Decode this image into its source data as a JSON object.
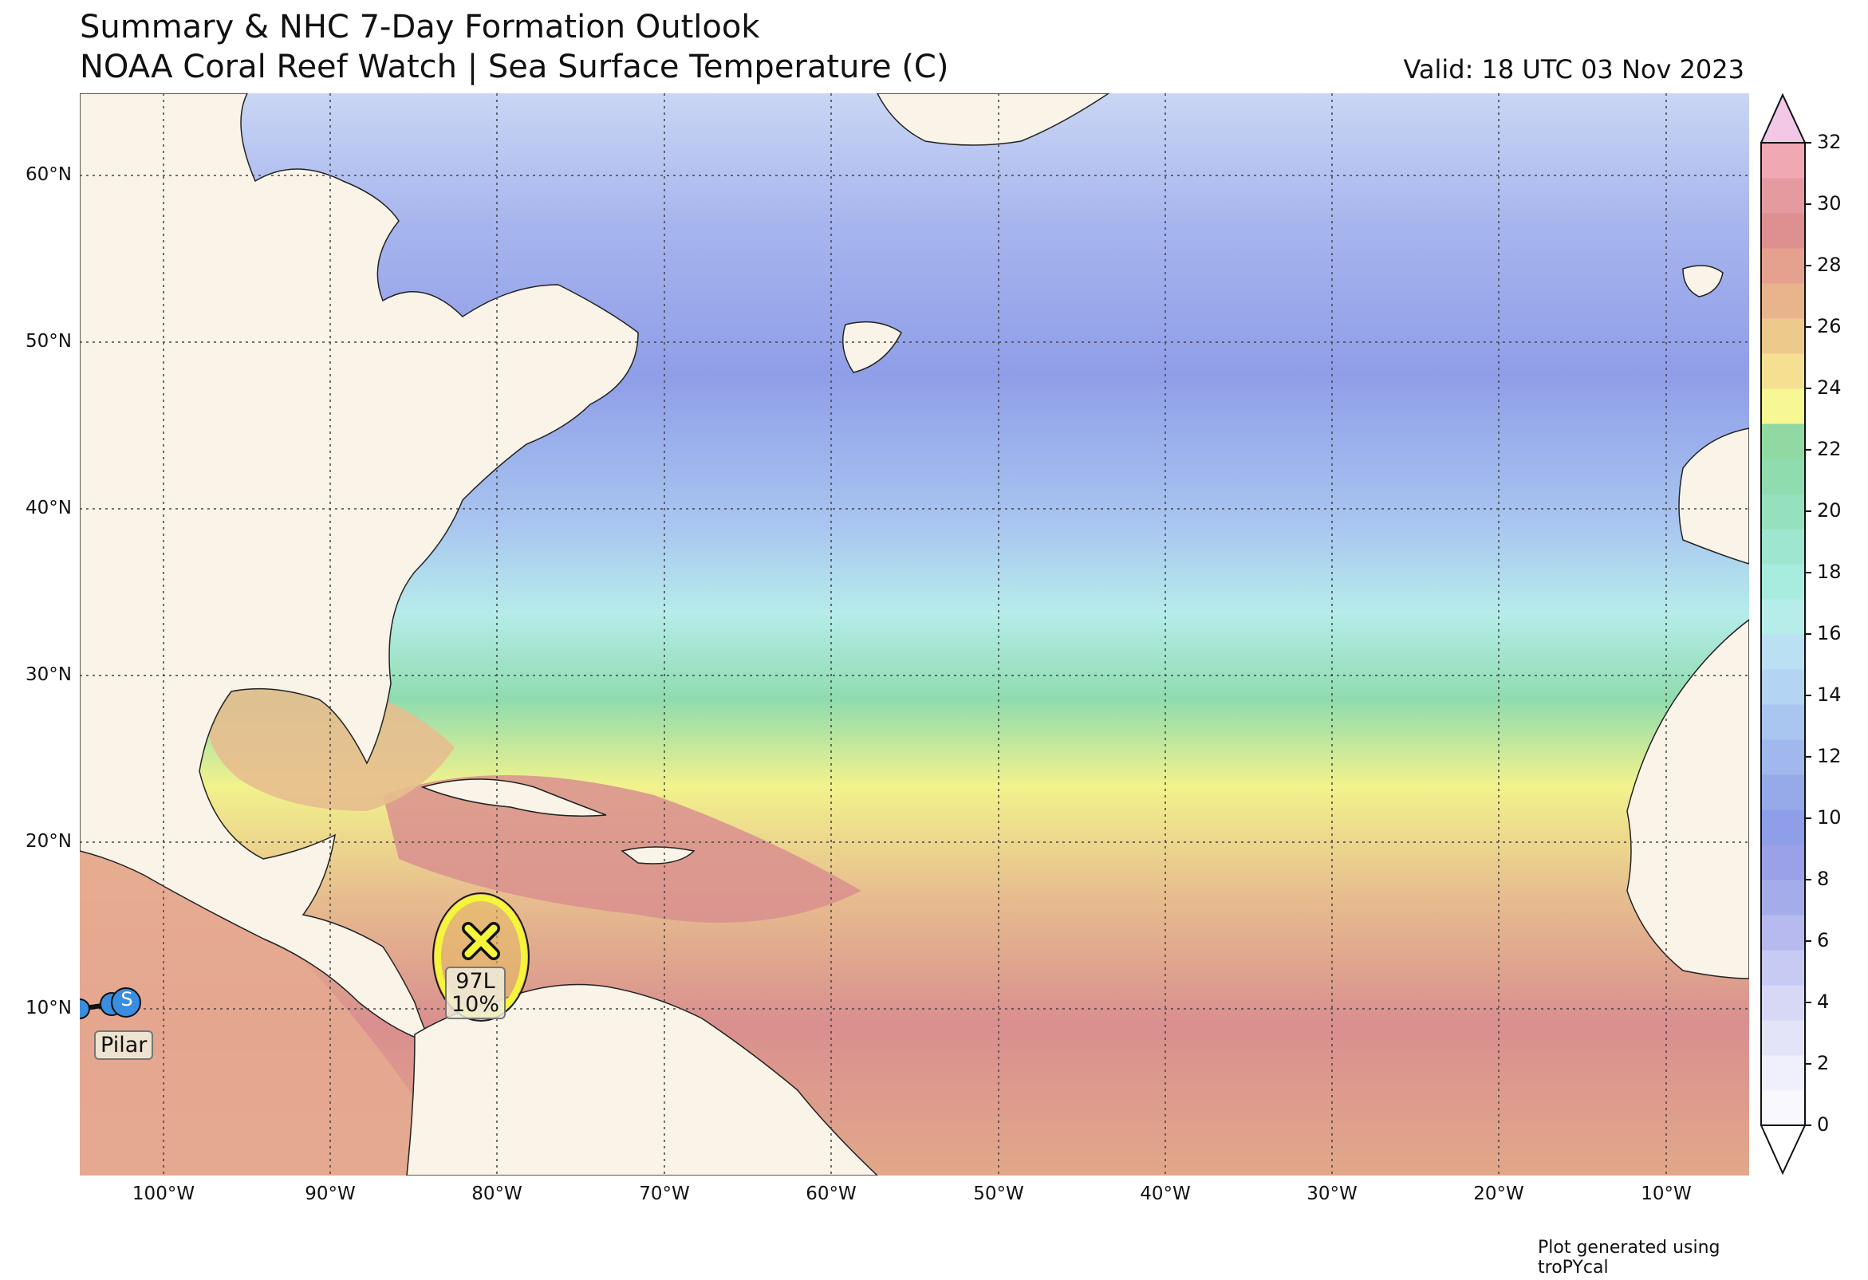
{
  "header": {
    "title_line1": "Summary & NHC 7-Day Formation Outlook",
    "title_line2": "NOAA Coral Reef Watch | Sea Surface Temperature (C)",
    "valid": "Valid: 18 UTC 03 Nov 2023"
  },
  "map": {
    "lat_labels": [
      "60°N",
      "50°N",
      "40°N",
      "30°N",
      "20°N",
      "10°N"
    ],
    "lon_labels": [
      "100°W",
      "90°W",
      "80°W",
      "70°W",
      "60°W",
      "50°W",
      "40°W",
      "30°W",
      "20°W",
      "10°W"
    ],
    "extent": {
      "lon": [
        -105,
        -5
      ],
      "lat": [
        0,
        65
      ]
    },
    "colors": {
      "land": "#f9f3e8",
      "sst_cold": "#8f9ee8",
      "sst_cool": "#a9c6f0",
      "sst_mild": "#b6ecea",
      "sst_warm_green": "#8fdcae",
      "sst_yellow": "#f2f28c",
      "sst_tan": "#e7be8e",
      "sst_hot": "#d98f8f"
    }
  },
  "disturbance": {
    "id": "97L",
    "probability": "10%",
    "marker": "x-mark-icon",
    "color": "#f5f53a"
  },
  "storm": {
    "name": "Pilar",
    "symbol": "S",
    "color": "#3a8ee0"
  },
  "colorbar": {
    "ticks": [
      "32",
      "30",
      "28",
      "26",
      "24",
      "22",
      "20",
      "18",
      "16",
      "14",
      "12",
      "10",
      "8",
      "6",
      "4",
      "2",
      "0"
    ],
    "range": [
      0,
      32
    ],
    "colors": [
      "#faf8ff",
      "#f0f0fc",
      "#e3e4f8",
      "#d6d8f5",
      "#c7caf2",
      "#b6baee",
      "#a5acea",
      "#9aa1e8",
      "#8f9ee8",
      "#96aaea",
      "#a0b8ee",
      "#a9c6f0",
      "#b3d4f2",
      "#b9e0f3",
      "#b6ecea",
      "#a8ebdf",
      "#9ee6cf",
      "#95e0bd",
      "#8fdcae",
      "#90d9a2",
      "#f7f794",
      "#f4e090",
      "#eec98c",
      "#e9b48c",
      "#e5a08e",
      "#de9090",
      "#e59aa0",
      "#f0a8b2"
    ],
    "extend_color": "#f2c8e6"
  },
  "footer": {
    "credit": "Plot generated using troPYcal"
  }
}
